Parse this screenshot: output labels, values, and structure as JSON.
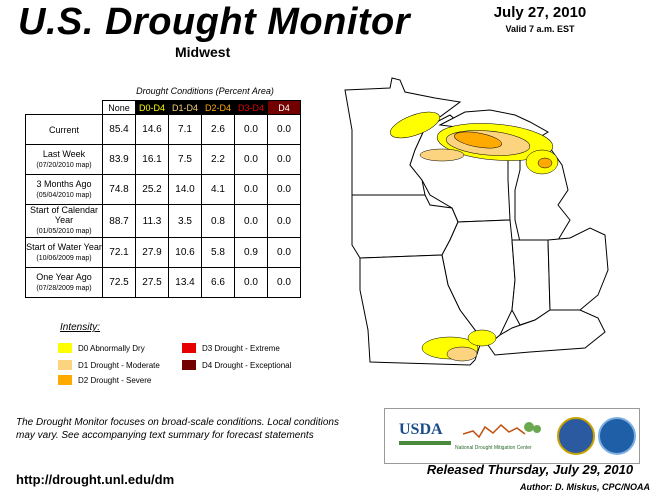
{
  "header": {
    "title": "U.S. Drought Monitor",
    "region": "Midwest",
    "date": "July 27, 2010",
    "valid": "Valid 7 a.m. EST"
  },
  "table": {
    "caption": "Drought Conditions (Percent Area)",
    "columns": [
      "None",
      "D0-D4",
      "D1-D4",
      "D2-D4",
      "D3-D4",
      "D4"
    ],
    "rows": [
      {
        "label": "Current",
        "sub": "",
        "values": [
          "85.4",
          "14.6",
          "7.1",
          "2.6",
          "0.0",
          "0.0"
        ]
      },
      {
        "label": "Last Week",
        "sub": "(07/20/2010 map)",
        "values": [
          "83.9",
          "16.1",
          "7.5",
          "2.2",
          "0.0",
          "0.0"
        ]
      },
      {
        "label": "3 Months Ago",
        "sub": "(05/04/2010 map)",
        "values": [
          "74.8",
          "25.2",
          "14.0",
          "4.1",
          "0.0",
          "0.0"
        ]
      },
      {
        "label": "Start of Calendar Year",
        "sub": "(01/05/2010 map)",
        "values": [
          "88.7",
          "11.3",
          "3.5",
          "0.8",
          "0.0",
          "0.0"
        ]
      },
      {
        "label": "Start of Water Year",
        "sub": "(10/06/2009 map)",
        "values": [
          "72.1",
          "27.9",
          "10.6",
          "5.8",
          "0.9",
          "0.0"
        ]
      },
      {
        "label": "One Year Ago",
        "sub": "(07/28/2009 map)",
        "values": [
          "72.5",
          "27.5",
          "13.4",
          "6.6",
          "0.0",
          "0.0"
        ]
      }
    ]
  },
  "legend": {
    "title": "Intensity:",
    "items": [
      {
        "label": "D0 Abnormally Dry",
        "color": "#ffff00"
      },
      {
        "label": "D1 Drought - Moderate",
        "color": "#fcd37f"
      },
      {
        "label": "D2 Drought - Severe",
        "color": "#ffaa00"
      },
      {
        "label": "D3 Drought - Extreme",
        "color": "#e60000"
      },
      {
        "label": "D4 Drought - Exceptional",
        "color": "#730000"
      }
    ]
  },
  "footer": {
    "note": "The Drought Monitor focuses on broad-scale conditions. Local conditions may vary. See accompanying text summary for forecast statements",
    "url": "http://drought.unl.edu/dm",
    "released": "Released Thursday, July 29, 2010",
    "author": "Author: D. Miskus, CPC/NOAA",
    "logos": {
      "usda": "USDA",
      "ndmc": "National Drought Mitigation Center"
    }
  }
}
